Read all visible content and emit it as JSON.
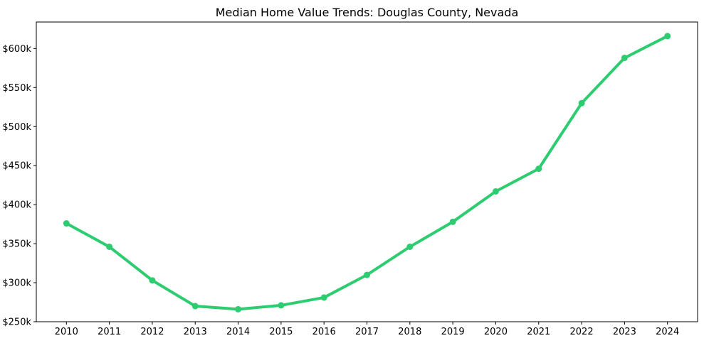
{
  "chart_data": {
    "type": "line",
    "title": "Median Home Value Trends: Douglas County, Nevada",
    "x": [
      2010,
      2011,
      2012,
      2013,
      2014,
      2015,
      2016,
      2017,
      2018,
      2019,
      2020,
      2021,
      2022,
      2023,
      2024
    ],
    "xtick_labels": [
      "2010",
      "2011",
      "2012",
      "2013",
      "2014",
      "2015",
      "2016",
      "2017",
      "2018",
      "2019",
      "2020",
      "2021",
      "2022",
      "2023",
      "2024"
    ],
    "series": [
      {
        "values": [
          376,
          346,
          303,
          270,
          266,
          271,
          281,
          310,
          346,
          378,
          417,
          446,
          530,
          588,
          616
        ],
        "unit": "USD thousands",
        "color": "#2ecc71",
        "marker": "circle"
      }
    ],
    "xlabel": "",
    "ylabel": "",
    "ylim": [
      250,
      634
    ],
    "yticks": [
      250,
      300,
      350,
      400,
      450,
      500,
      550,
      600
    ],
    "ytick_labels": [
      "$250k",
      "$300k",
      "$350k",
      "$400k",
      "$450k",
      "$500k",
      "$550k",
      "$600k"
    ],
    "grid": false,
    "legend": "none",
    "colors": {
      "line": "#2ecc71",
      "axis": "#000000",
      "text": "#000000",
      "background": "#ffffff"
    }
  }
}
